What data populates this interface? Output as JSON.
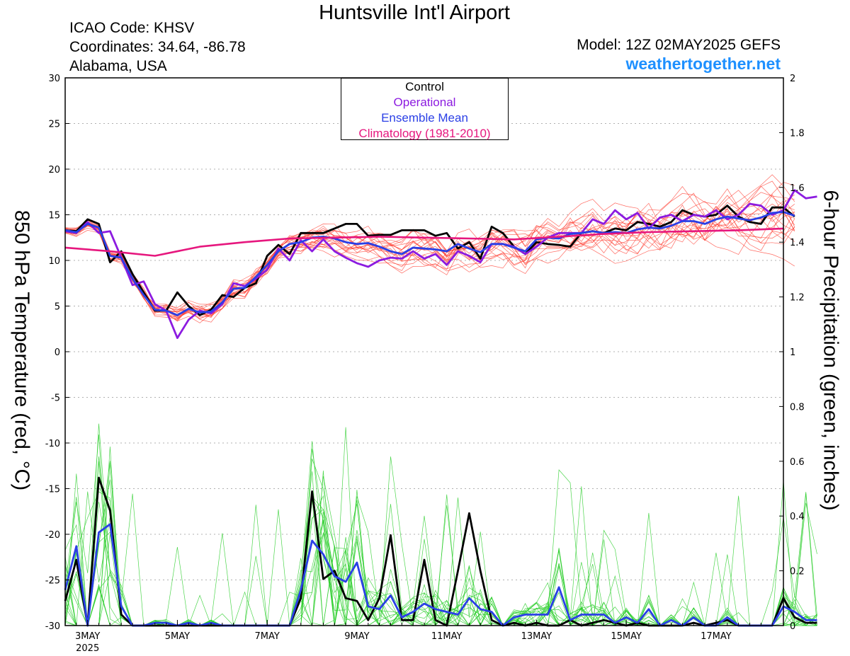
{
  "header": {
    "title": "Huntsville Int'l Airport",
    "icao": "ICAO Code: KHSV",
    "coords": "Coordinates: 34.64, -86.78",
    "region": "Alabama, USA",
    "model": "Model: 12Z 02MAY2025 GEFS",
    "site": "weathertogether.net"
  },
  "chart_data": {
    "type": "line",
    "ylabel": "850 hPa Temperature (red, °C)",
    "y2label": "6-hour Precipitation (green, inches)",
    "xlim": [
      "2025-05-02T12:00",
      "2025-05-18T12:00"
    ],
    "ylim": [
      -30,
      30
    ],
    "y2lim": [
      0,
      2
    ],
    "yticks": [
      "30",
      "25",
      "20",
      "15",
      "10",
      "5",
      "0",
      "-5",
      "-10",
      "-15",
      "-20",
      "-25",
      "-30"
    ],
    "y2ticks": [
      "2",
      "1.8",
      "1.6",
      "1.4",
      "1.2",
      "1",
      "0.8",
      "0.6",
      "0.4",
      "0.2",
      "0"
    ],
    "xticks": [
      {
        "date": "2025-05-03",
        "label": "3MAY",
        "sub": "2025"
      },
      {
        "date": "2025-05-05",
        "label": "5MAY",
        "sub": ""
      },
      {
        "date": "2025-05-07",
        "label": "7MAY",
        "sub": ""
      },
      {
        "date": "2025-05-09",
        "label": "9MAY",
        "sub": ""
      },
      {
        "date": "2025-05-11",
        "label": "11MAY",
        "sub": ""
      },
      {
        "date": "2025-05-13",
        "label": "13MAY",
        "sub": ""
      },
      {
        "date": "2025-05-15",
        "label": "15MAY",
        "sub": ""
      },
      {
        "date": "2025-05-17",
        "label": "17MAY",
        "sub": ""
      }
    ],
    "grid": true,
    "legend_position": "top-center",
    "legend": [
      {
        "label": "Control",
        "color": "#000000"
      },
      {
        "label": "Operational",
        "color": "#8c1be0"
      },
      {
        "label": "Ensemble Mean",
        "color": "#2a3fe6"
      },
      {
        "label": "Climatology (1981-2010)",
        "color": "#e6177e"
      }
    ],
    "series": [
      {
        "name": "Control",
        "axis": "temperature",
        "color": "#000000",
        "start": "2025-05-02T12:00",
        "step_hours": 6,
        "values": [
          13.3,
          13.2,
          14.5,
          14.0,
          9.8,
          11.0,
          8.5,
          6.5,
          4.5,
          4.5,
          6.5,
          5.0,
          4.0,
          4.6,
          6.2,
          6.0,
          7.0,
          7.5,
          10.5,
          11.7,
          10.7,
          13.0,
          13.0,
          13.0,
          13.5,
          14.0,
          14.0,
          12.7,
          12.8,
          12.8,
          13.3,
          13.3,
          13.3,
          12.7,
          13.0,
          11.3,
          12.0,
          10.2,
          13.7,
          13.0,
          11.5,
          10.7,
          12.0,
          11.8,
          11.7,
          11.5,
          13.0,
          13.2,
          13.0,
          13.5,
          13.3,
          14.2,
          14.0,
          13.7,
          14.2,
          15.5,
          15.0,
          14.8,
          15.0,
          16.0,
          14.8,
          14.2,
          14.0,
          15.8,
          15.8,
          14.8
        ]
      },
      {
        "name": "Operational",
        "axis": "temperature",
        "color": "#8c1be0",
        "start": "2025-05-02T12:00",
        "step_hours": 6,
        "values": [
          13.2,
          13.0,
          14.2,
          13.0,
          13.2,
          10.3,
          7.3,
          7.7,
          5.2,
          4.5,
          1.5,
          3.5,
          4.5,
          4.2,
          5.2,
          7.5,
          7.2,
          8.0,
          9.0,
          11.3,
          10.0,
          12.2,
          11.0,
          12.3,
          11.0,
          10.3,
          9.7,
          9.3,
          10.0,
          10.3,
          10.2,
          11.0,
          10.2,
          10.7,
          9.5,
          11.0,
          10.5,
          9.8,
          11.8,
          11.8,
          11.5,
          10.7,
          11.5,
          12.5,
          13.0,
          13.0,
          13.0,
          14.5,
          14.0,
          15.5,
          14.5,
          15.2,
          13.5,
          14.7,
          15.0,
          14.3,
          15.0,
          14.8,
          15.5,
          14.5,
          15.0,
          16.2,
          16.0,
          15.0,
          15.5,
          17.7,
          16.8,
          17.0
        ]
      },
      {
        "name": "Ensemble Mean",
        "axis": "temperature",
        "color": "#2a3fe6",
        "start": "2025-05-02T12:00",
        "step_hours": 6,
        "values": [
          13.3,
          13.1,
          14.0,
          13.6,
          10.5,
          10.3,
          8.0,
          6.2,
          4.6,
          4.5,
          4.0,
          4.7,
          4.3,
          4.4,
          5.4,
          6.9,
          7.0,
          8.2,
          9.5,
          11.0,
          11.8,
          12.0,
          12.5,
          12.6,
          12.4,
          12.0,
          11.8,
          11.9,
          11.5,
          11.0,
          10.7,
          11.4,
          11.3,
          11.2,
          11.0,
          11.8,
          11.3,
          10.9,
          11.8,
          11.8,
          11.4,
          11.0,
          12.3,
          12.5,
          12.4,
          12.9,
          13.0,
          13.2,
          13.0,
          13.1,
          13.0,
          13.4,
          13.6,
          13.5,
          13.8,
          14.3,
          14.3,
          14.0,
          14.5,
          14.8,
          14.6,
          14.4,
          14.7,
          15.2,
          15.3,
          14.9
        ]
      },
      {
        "name": "Climatology (1981-2010)",
        "axis": "temperature",
        "color": "#e6177e",
        "start": "2025-05-02T12:00",
        "step_hours": 24,
        "values": [
          11.4,
          11.0,
          10.5,
          11.5,
          12.0,
          12.4,
          12.5,
          12.6,
          12.5,
          12.4,
          12.3,
          12.6,
          12.9,
          13.1,
          13.2,
          13.3,
          13.5
        ]
      },
      {
        "name": "Control",
        "axis": "precipitation",
        "color": "#000000",
        "start": "2025-05-02T12:00",
        "step_hours": 6,
        "values": [
          0.09,
          0.24,
          0.0,
          0.54,
          0.42,
          0.04,
          0.0,
          0.0,
          0.0,
          0.0,
          0.0,
          0.0,
          0.0,
          0.0,
          0.0,
          0.0,
          0.0,
          0.0,
          0.0,
          0.0,
          0.0,
          0.1,
          0.49,
          0.17,
          0.2,
          0.1,
          0.09,
          0.02,
          0.1,
          0.33,
          0.02,
          0.02,
          0.24,
          0.02,
          0.0,
          0.2,
          0.41,
          0.2,
          0.02,
          0.0,
          0.01,
          0.0,
          0.01,
          0.0,
          0.0,
          0.02,
          0.0,
          0.01,
          0.02,
          0.01,
          0.0,
          0.01,
          0.0,
          0.0,
          0.0,
          0.0,
          0.01,
          0.0,
          0.01,
          0.02,
          0.0,
          0.0,
          0.0,
          0.0,
          0.1,
          0.03,
          0.01,
          0.01
        ]
      },
      {
        "name": "Ensemble Mean",
        "axis": "precipitation",
        "color": "#2a3fe6",
        "start": "2025-05-02T12:00",
        "step_hours": 6,
        "values": [
          0.13,
          0.29,
          0.0,
          0.34,
          0.37,
          0.07,
          0.0,
          0.0,
          0.01,
          0.01,
          0.0,
          0.01,
          0.0,
          0.01,
          0.0,
          0.0,
          0.0,
          0.0,
          0.0,
          0.0,
          0.0,
          0.13,
          0.31,
          0.26,
          0.18,
          0.16,
          0.23,
          0.07,
          0.06,
          0.11,
          0.03,
          0.05,
          0.08,
          0.06,
          0.05,
          0.04,
          0.1,
          0.06,
          0.05,
          0.0,
          0.03,
          0.04,
          0.04,
          0.04,
          0.14,
          0.02,
          0.04,
          0.04,
          0.04,
          0.01,
          0.03,
          0.01,
          0.06,
          0.0,
          0.02,
          0.0,
          0.03,
          0.0,
          0.0,
          0.03,
          0.0,
          0.0,
          0.0,
          0.0,
          0.07,
          0.05,
          0.02,
          0.02
        ]
      }
    ]
  }
}
